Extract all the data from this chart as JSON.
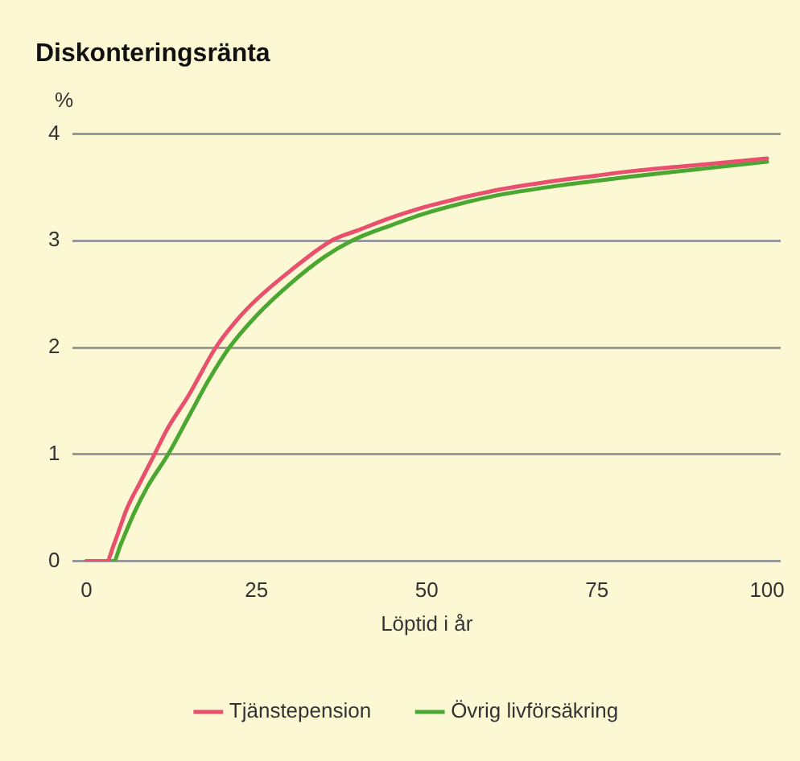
{
  "chart_data": {
    "type": "line",
    "title": "Diskonteringsränta",
    "ylabel": "%",
    "xlabel": "Löptid i år",
    "xlim": [
      -2,
      102
    ],
    "xticks": [
      0,
      25,
      50,
      75,
      100
    ],
    "ylim": [
      0,
      4
    ],
    "yticks": [
      0,
      1,
      2,
      3,
      4
    ],
    "grid": "y",
    "legend": "bottom",
    "marker": "none",
    "line_style": "solid",
    "series": [
      {
        "name": "Tjänstepension",
        "color": "#e8506e",
        "x": [
          0,
          3,
          4,
          6,
          8,
          10,
          12,
          15,
          19,
          22,
          25,
          30,
          36,
          40,
          45,
          50,
          60,
          70,
          75,
          80,
          90,
          100
        ],
        "values": [
          0,
          0,
          0.15,
          0.5,
          0.75,
          1.0,
          1.25,
          1.55,
          2.0,
          2.25,
          2.45,
          2.72,
          3.0,
          3.1,
          3.22,
          3.32,
          3.47,
          3.57,
          3.61,
          3.65,
          3.71,
          3.77
        ]
      },
      {
        "name": "Övrig livförsäkring",
        "color": "#4aa832",
        "x": [
          0,
          4,
          5,
          7,
          9,
          12,
          15,
          18,
          21,
          25,
          30,
          35,
          39,
          45,
          50,
          60,
          70,
          75,
          80,
          90,
          100
        ],
        "values": [
          0,
          0,
          0.15,
          0.45,
          0.7,
          1.0,
          1.35,
          1.7,
          2.0,
          2.3,
          2.6,
          2.85,
          3.0,
          3.15,
          3.26,
          3.42,
          3.52,
          3.56,
          3.6,
          3.67,
          3.74
        ]
      }
    ]
  }
}
